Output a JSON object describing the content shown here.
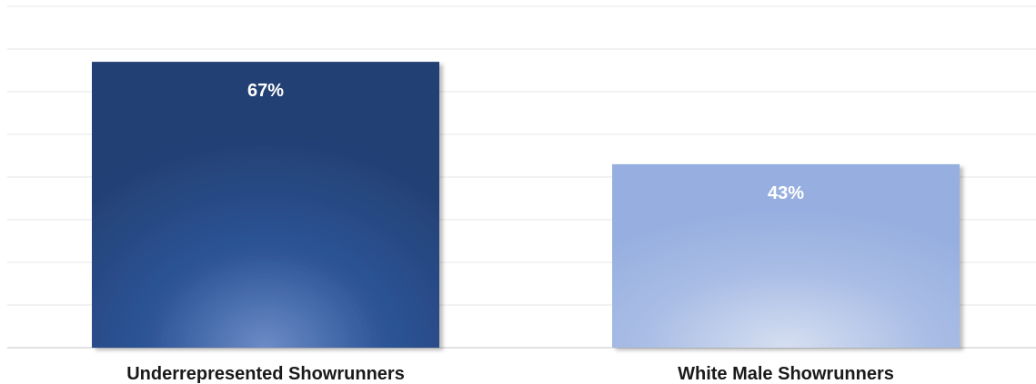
{
  "chart_data": {
    "type": "bar",
    "categories": [
      "Underrepresented Showrunners",
      "White Male Showrunners"
    ],
    "values": [
      67,
      43
    ],
    "data_labels": [
      "67%",
      "43%"
    ],
    "ylim": [
      0,
      80
    ],
    "grid": true,
    "colors": {
      "series": [
        "#2a4f8e",
        "#9db3e0"
      ],
      "grid": "#e6e6e6",
      "label_text": "#ffffff",
      "category_text": "#1a1a1a"
    }
  }
}
